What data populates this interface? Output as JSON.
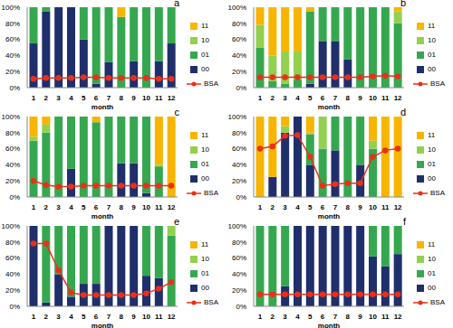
{
  "chart_data": [
    {
      "type": "bar",
      "title": "a",
      "x_label": "month",
      "stacked": true,
      "grid": false,
      "legend": "right",
      "categories": [
        "1",
        "2",
        "3",
        "4",
        "5",
        "6",
        "7",
        "8",
        "9",
        "10",
        "11",
        "12"
      ],
      "ylim": [
        0,
        100
      ],
      "yticks": [
        {
          "value": 0,
          "label": "0%"
        },
        {
          "value": 20,
          "label": "20%"
        },
        {
          "value": 40,
          "label": "40%"
        },
        {
          "value": 60,
          "label": "60%"
        },
        {
          "value": 80,
          "label": "80%"
        },
        {
          "value": 100,
          "label": "100%"
        }
      ],
      "series": [
        {
          "name": "00",
          "color": "#1f2f6b",
          "values": [
            55,
            95,
            100,
            100,
            60,
            5,
            32,
            0,
            33,
            0,
            33,
            55
          ]
        },
        {
          "name": "01",
          "color": "#35a84f",
          "values": [
            45,
            5,
            0,
            0,
            40,
            95,
            68,
            88,
            67,
            100,
            67,
            45
          ]
        },
        {
          "name": "10",
          "color": "#92d050",
          "values": [
            0,
            0,
            0,
            0,
            0,
            0,
            0,
            0,
            0,
            0,
            0,
            0
          ]
        },
        {
          "name": "11",
          "color": "#f7b500",
          "values": [
            0,
            0,
            0,
            0,
            0,
            0,
            0,
            12,
            0,
            0,
            0,
            0
          ]
        },
        {
          "name": "BSA",
          "type": "line",
          "color": "#e8311a",
          "marker": "circle",
          "line_style": "solid",
          "values": [
            11,
            12,
            12,
            12,
            13,
            13,
            12,
            12,
            12,
            12,
            11,
            11
          ]
        }
      ]
    },
    {
      "type": "bar",
      "title": "b",
      "x_label": "month",
      "stacked": true,
      "grid": false,
      "legend": "right",
      "categories": [
        "1",
        "2",
        "3",
        "4",
        "5",
        "6",
        "7",
        "8",
        "9",
        "10",
        "11",
        "12"
      ],
      "ylim": [
        0,
        100
      ],
      "yticks": [
        {
          "value": 0,
          "label": "0%"
        },
        {
          "value": 20,
          "label": "20%"
        },
        {
          "value": 40,
          "label": "40%"
        },
        {
          "value": 60,
          "label": "60%"
        },
        {
          "value": 80,
          "label": "80%"
        },
        {
          "value": 100,
          "label": "100%"
        }
      ],
      "series": [
        {
          "name": "00",
          "color": "#1f2f6b",
          "values": [
            0,
            0,
            0,
            0,
            5,
            58,
            58,
            35,
            0,
            0,
            0,
            0
          ]
        },
        {
          "name": "01",
          "color": "#35a84f",
          "values": [
            50,
            8,
            5,
            10,
            90,
            42,
            42,
            65,
            100,
            100,
            100,
            80
          ]
        },
        {
          "name": "10",
          "color": "#92d050",
          "values": [
            28,
            32,
            40,
            35,
            0,
            0,
            0,
            0,
            0,
            0,
            0,
            15
          ]
        },
        {
          "name": "11",
          "color": "#f7b500",
          "values": [
            22,
            60,
            55,
            55,
            5,
            0,
            0,
            0,
            0,
            0,
            0,
            5
          ]
        },
        {
          "name": "BSA",
          "type": "line",
          "color": "#e8311a",
          "marker": "circle",
          "line_style": "solid",
          "values": [
            13,
            13,
            13,
            13,
            13,
            13,
            13,
            13,
            13,
            14,
            15,
            14
          ]
        }
      ]
    },
    {
      "type": "bar",
      "title": "c",
      "x_label": "month",
      "stacked": true,
      "grid": false,
      "legend": "right",
      "categories": [
        "1",
        "2",
        "3",
        "4",
        "5",
        "6",
        "7",
        "8",
        "9",
        "10",
        "11",
        "12"
      ],
      "ylim": [
        0,
        100
      ],
      "yticks": [
        {
          "value": 0,
          "label": "0%"
        },
        {
          "value": 20,
          "label": "20%"
        },
        {
          "value": 40,
          "label": "40%"
        },
        {
          "value": 60,
          "label": "60%"
        },
        {
          "value": 80,
          "label": "80%"
        },
        {
          "value": 100,
          "label": "100%"
        }
      ],
      "series": [
        {
          "name": "00",
          "color": "#1f2f6b",
          "values": [
            0,
            0,
            0,
            35,
            0,
            0,
            0,
            42,
            42,
            5,
            0,
            0
          ]
        },
        {
          "name": "01",
          "color": "#35a84f",
          "values": [
            70,
            80,
            100,
            65,
            100,
            93,
            100,
            58,
            58,
            95,
            38,
            0
          ]
        },
        {
          "name": "10",
          "color": "#92d050",
          "values": [
            5,
            10,
            0,
            0,
            0,
            0,
            0,
            0,
            0,
            0,
            2,
            0
          ]
        },
        {
          "name": "11",
          "color": "#f7b500",
          "values": [
            25,
            10,
            0,
            0,
            0,
            7,
            0,
            0,
            0,
            0,
            60,
            100
          ]
        },
        {
          "name": "BSA",
          "type": "line",
          "color": "#e8311a",
          "marker": "circle",
          "line_style": "solid",
          "values": [
            20,
            15,
            13,
            13,
            14,
            14,
            14,
            14,
            14,
            14,
            14,
            14
          ]
        }
      ]
    },
    {
      "type": "bar",
      "title": "d",
      "x_label": "month",
      "stacked": true,
      "grid": false,
      "legend": "right",
      "categories": [
        "1",
        "2",
        "3",
        "4",
        "5",
        "6",
        "7",
        "8",
        "9",
        "10",
        "11",
        "12"
      ],
      "ylim": [
        0,
        100
      ],
      "yticks": [
        {
          "value": 0,
          "label": "0%"
        },
        {
          "value": 20,
          "label": "20%"
        },
        {
          "value": 40,
          "label": "40%"
        },
        {
          "value": 60,
          "label": "60%"
        },
        {
          "value": 80,
          "label": "80%"
        },
        {
          "value": 100,
          "label": "100%"
        }
      ],
      "series": [
        {
          "name": "00",
          "color": "#1f2f6b",
          "values": [
            0,
            25,
            80,
            100,
            40,
            0,
            58,
            0,
            40,
            0,
            0,
            0
          ]
        },
        {
          "name": "01",
          "color": "#35a84f",
          "values": [
            0,
            0,
            0,
            0,
            38,
            60,
            42,
            100,
            60,
            60,
            0,
            0
          ]
        },
        {
          "name": "10",
          "color": "#92d050",
          "values": [
            0,
            0,
            8,
            0,
            2,
            40,
            0,
            0,
            0,
            10,
            0,
            0
          ]
        },
        {
          "name": "11",
          "color": "#f7b500",
          "values": [
            100,
            75,
            12,
            0,
            20,
            0,
            0,
            0,
            0,
            30,
            100,
            100
          ]
        },
        {
          "name": "BSA",
          "type": "line",
          "color": "#e8311a",
          "marker": "circle",
          "line_style": "solid",
          "values": [
            60,
            63,
            76,
            77,
            50,
            14,
            16,
            17,
            17,
            50,
            58,
            60
          ]
        }
      ]
    },
    {
      "type": "bar",
      "title": "e",
      "x_label": "month",
      "stacked": true,
      "grid": false,
      "legend": "right",
      "categories": [
        "1",
        "2",
        "3",
        "4",
        "5",
        "6",
        "7",
        "8",
        "9",
        "10",
        "11",
        "12"
      ],
      "ylim": [
        0,
        100
      ],
      "yticks": [
        {
          "value": 0,
          "label": "0%"
        },
        {
          "value": 20,
          "label": "20%"
        },
        {
          "value": 40,
          "label": "40%"
        },
        {
          "value": 60,
          "label": "60%"
        },
        {
          "value": 80,
          "label": "80%"
        },
        {
          "value": 100,
          "label": "100%"
        }
      ],
      "series": [
        {
          "name": "00",
          "color": "#1f2f6b",
          "values": [
            100,
            5,
            40,
            12,
            28,
            28,
            100,
            100,
            100,
            38,
            35,
            0
          ]
        },
        {
          "name": "01",
          "color": "#35a84f",
          "values": [
            0,
            95,
            60,
            88,
            72,
            72,
            0,
            0,
            0,
            62,
            65,
            88
          ]
        },
        {
          "name": "10",
          "color": "#92d050",
          "values": [
            0,
            0,
            0,
            0,
            0,
            0,
            0,
            0,
            0,
            0,
            0,
            12
          ]
        },
        {
          "name": "11",
          "color": "#f7b500",
          "values": [
            0,
            0,
            0,
            0,
            0,
            0,
            0,
            0,
            0,
            0,
            0,
            0
          ]
        },
        {
          "name": "BSA",
          "type": "line",
          "color": "#e8311a",
          "marker": "circle",
          "line_style": "solid",
          "values": [
            78,
            78,
            45,
            17,
            14,
            14,
            14,
            14,
            14,
            16,
            22,
            30
          ]
        }
      ]
    },
    {
      "type": "bar",
      "title": "f",
      "x_label": "month",
      "stacked": true,
      "grid": false,
      "legend": "right",
      "categories": [
        "1",
        "2",
        "3",
        "4",
        "5",
        "6",
        "7",
        "8",
        "9",
        "10",
        "11",
        "12"
      ],
      "ylim": [
        0,
        100
      ],
      "yticks": [
        {
          "value": 0,
          "label": "0%"
        },
        {
          "value": 20,
          "label": "20%"
        },
        {
          "value": 40,
          "label": "40%"
        },
        {
          "value": 60,
          "label": "60%"
        },
        {
          "value": 80,
          "label": "80%"
        },
        {
          "value": 100,
          "label": "100%"
        }
      ],
      "series": [
        {
          "name": "00",
          "color": "#1f2f6b",
          "values": [
            0,
            0,
            25,
            100,
            100,
            100,
            100,
            100,
            100,
            62,
            50,
            65
          ]
        },
        {
          "name": "01",
          "color": "#35a84f",
          "values": [
            100,
            100,
            75,
            0,
            0,
            0,
            0,
            0,
            0,
            38,
            50,
            35
          ]
        },
        {
          "name": "10",
          "color": "#92d050",
          "values": [
            0,
            0,
            0,
            0,
            0,
            0,
            0,
            0,
            0,
            0,
            0,
            0
          ]
        },
        {
          "name": "11",
          "color": "#f7b500",
          "values": [
            0,
            0,
            0,
            0,
            0,
            0,
            0,
            0,
            0,
            0,
            0,
            0
          ]
        },
        {
          "name": "BSA",
          "type": "line",
          "color": "#e8311a",
          "marker": "circle",
          "line_style": "solid",
          "values": [
            15,
            15,
            15,
            15,
            15,
            15,
            15,
            15,
            15,
            15,
            15,
            15
          ]
        }
      ]
    }
  ]
}
